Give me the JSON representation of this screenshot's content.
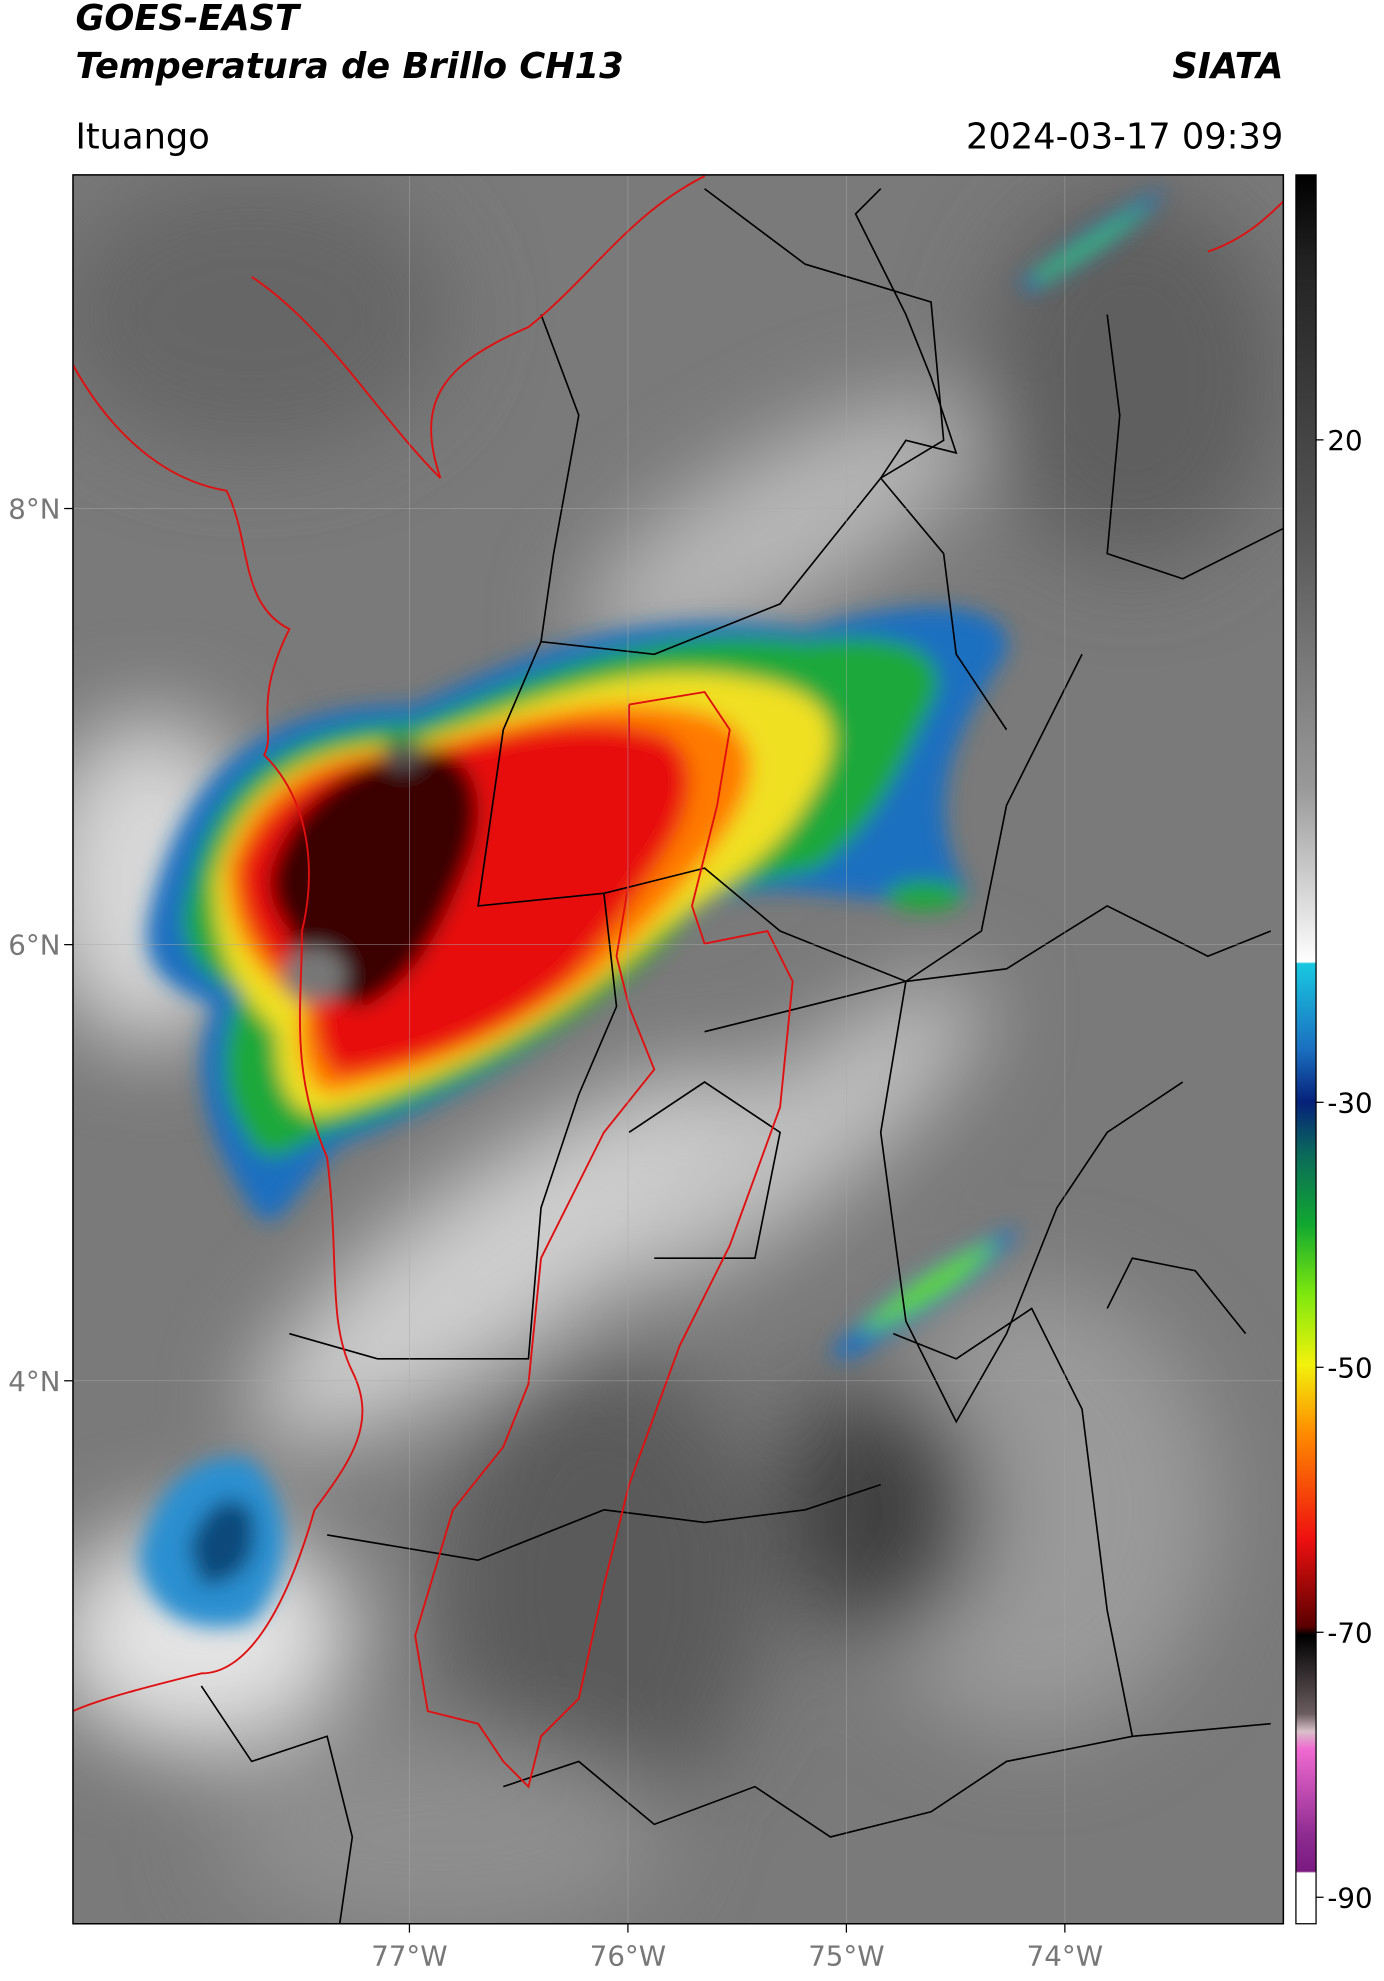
{
  "header": {
    "title": "GOES-EAST",
    "subtitle": "Temperatura de Brillo CH13",
    "source": "SIATA",
    "region": "Ituango",
    "timestamp": "2024-03-17 09:39"
  },
  "map": {
    "xlim": [
      -78.54,
      -73.0
    ],
    "ylim": [
      1.51,
      9.53
    ],
    "xticks": [
      {
        "value": -77,
        "label": "77°W"
      },
      {
        "value": -76,
        "label": "76°W"
      },
      {
        "value": -75,
        "label": "75°W"
      },
      {
        "value": -74,
        "label": "74°W"
      }
    ],
    "yticks": [
      {
        "value": 8,
        "label": "8°N"
      },
      {
        "value": 6,
        "label": "6°N"
      },
      {
        "value": 4,
        "label": "4°N"
      }
    ],
    "grid": true
  },
  "colorbar": {
    "lim": [
      -92,
      40
    ],
    "ticks": [
      20,
      -30,
      -50,
      -70,
      -90
    ]
  }
}
